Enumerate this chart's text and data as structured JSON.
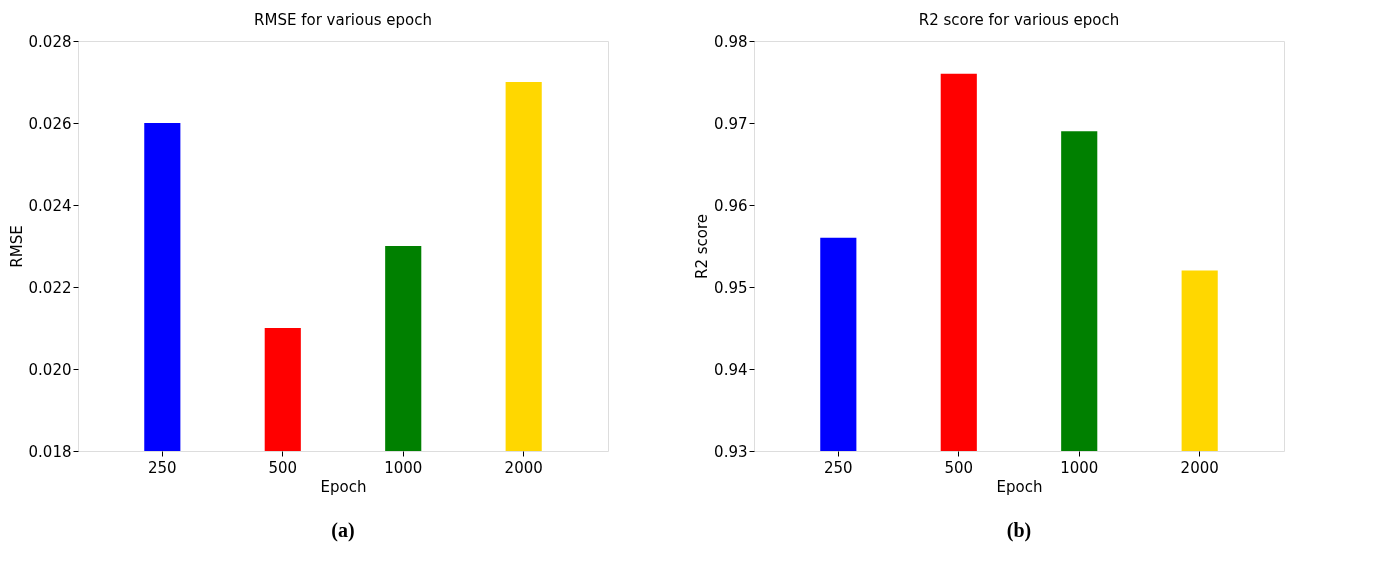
{
  "chart_data": [
    {
      "type": "bar",
      "title": "RMSE for various epoch",
      "xlabel": "Epoch",
      "ylabel": "RMSE",
      "categories": [
        "250",
        "500",
        "1000",
        "2000"
      ],
      "values": [
        0.026,
        0.021,
        0.023,
        0.027
      ],
      "colors": [
        "#0000ff",
        "#ff0000",
        "#008000",
        "#ffd700"
      ],
      "ylim": [
        0.018,
        0.028
      ],
      "yticks": [
        0.018,
        {
          "value": 0.02,
          "label": "0.020"
        },
        0.022,
        0.024,
        0.026,
        0.028
      ],
      "grid": false,
      "annotations": [
        "(a)"
      ]
    },
    {
      "type": "bar",
      "title": "R2 score for various epoch",
      "xlabel": "Epoch",
      "ylabel": "R2 score",
      "categories": [
        "250",
        "500",
        "1000",
        "2000"
      ],
      "values": [
        0.956,
        0.976,
        0.969,
        0.952
      ],
      "colors": [
        "#0000ff",
        "#ff0000",
        "#008000",
        "#ffd700"
      ],
      "ylim": [
        0.93,
        0.98
      ],
      "yticks": [
        0.93,
        0.94,
        0.95,
        0.96,
        0.97,
        0.98
      ],
      "grid": false,
      "annotations": [
        "(b)"
      ]
    }
  ]
}
